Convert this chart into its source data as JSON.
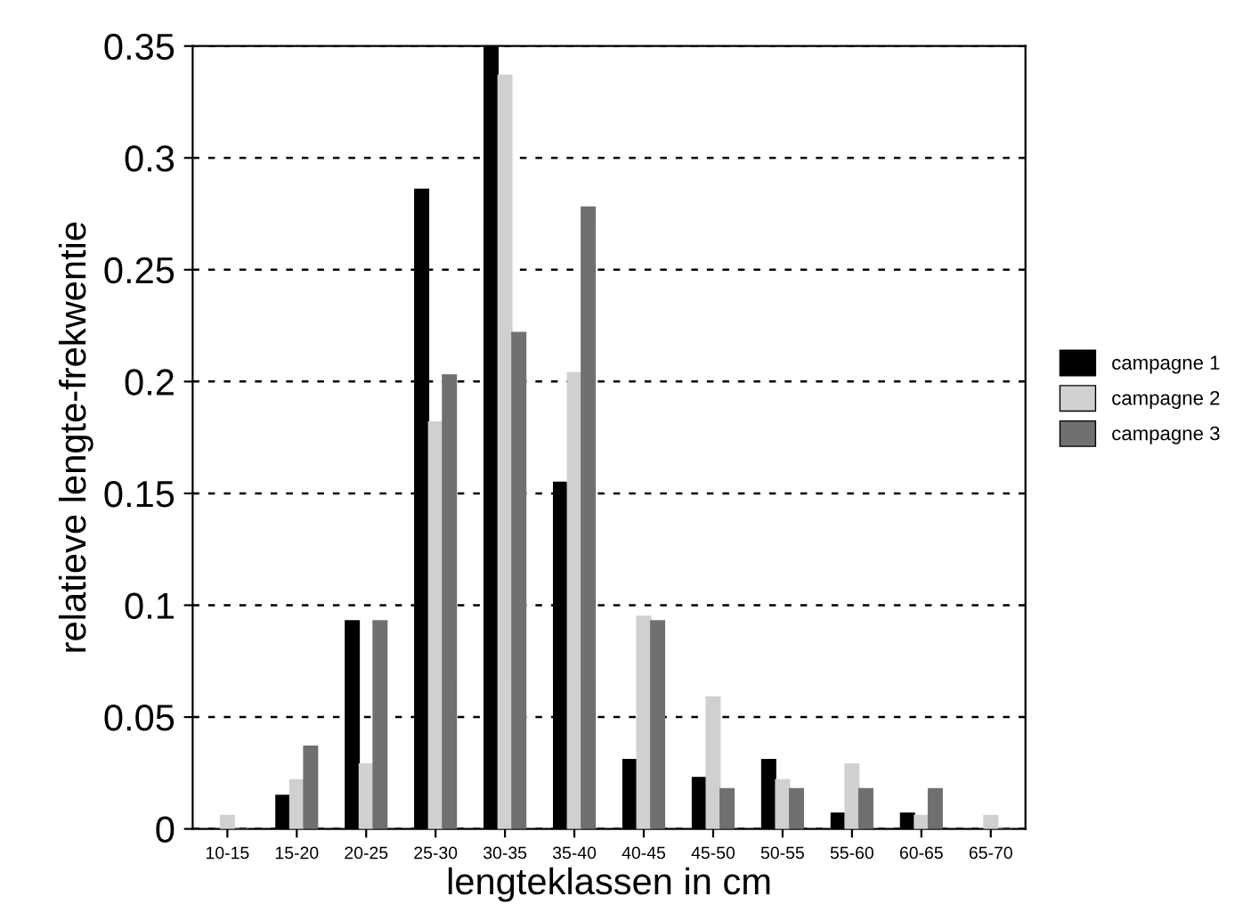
{
  "chart_data": {
    "type": "bar",
    "xlabel": "lengteklassen in cm",
    "ylabel": "relatieve lengte-frekwentie",
    "categories": [
      "10-15",
      "15-20",
      "20-25",
      "25-30",
      "30-35",
      "35-40",
      "40-45",
      "45-50",
      "50-55",
      "55-60",
      "60-65",
      "65-70"
    ],
    "series": [
      {
        "name": "campagne 1",
        "color": "#000000",
        "values": [
          0,
          0.015,
          0.093,
          0.286,
          0.35,
          0.155,
          0.031,
          0.023,
          0.031,
          0.007,
          0.007,
          0
        ]
      },
      {
        "name": "campagne 2",
        "color": "#d0d0d0",
        "values": [
          0.006,
          0.022,
          0.029,
          0.182,
          0.337,
          0.204,
          0.095,
          0.059,
          0.022,
          0.029,
          0.006,
          0.006
        ]
      },
      {
        "name": "campagne 3",
        "color": "#707070",
        "values": [
          0,
          0.037,
          0.093,
          0.203,
          0.222,
          0.278,
          0.093,
          0.018,
          0.018,
          0.018,
          0.018,
          0
        ]
      }
    ],
    "ylim": [
      0,
      0.35
    ],
    "yticks": [
      0,
      0.05,
      0.1,
      0.15,
      0.2,
      0.25,
      0.3,
      0.35
    ],
    "grid": "y",
    "legend": "right"
  }
}
